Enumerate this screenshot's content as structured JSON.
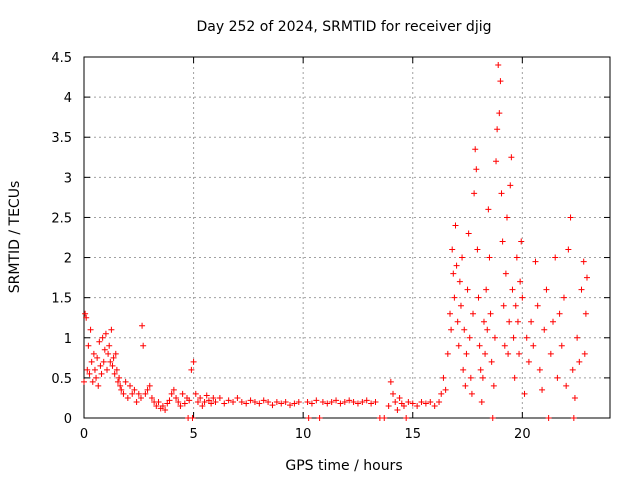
{
  "chart_data": {
    "type": "scatter",
    "title": "Day 252 of 2024, SRMTID for receiver djig",
    "xlabel": "GPS time / hours",
    "ylabel": "SRMTID / TECUs",
    "xlim": [
      0,
      24
    ],
    "ylim": [
      0,
      4.5
    ],
    "xticks": [
      0,
      5,
      10,
      15,
      20
    ],
    "xtick_labels": [
      "0",
      "5",
      "10",
      "15",
      "20"
    ],
    "yticks": [
      0,
      0.5,
      1,
      1.5,
      2,
      2.5,
      3,
      3.5,
      4,
      4.5
    ],
    "ytick_labels": [
      "0",
      "0.5",
      "1",
      "1.5",
      "2",
      "2.5",
      "3",
      "3.5",
      "4",
      "4.5"
    ],
    "grid": true,
    "marker": "+",
    "color": "#ff0000",
    "series": [
      {
        "name": "SRMTID",
        "points": [
          [
            0.0,
            0.45
          ],
          [
            0.05,
            1.3
          ],
          [
            0.1,
            1.25
          ],
          [
            0.15,
            0.6
          ],
          [
            0.2,
            0.9
          ],
          [
            0.25,
            0.55
          ],
          [
            0.3,
            1.1
          ],
          [
            0.35,
            0.7
          ],
          [
            0.4,
            0.45
          ],
          [
            0.45,
            0.8
          ],
          [
            0.5,
            0.6
          ],
          [
            0.55,
            0.5
          ],
          [
            0.6,
            0.75
          ],
          [
            0.65,
            0.4
          ],
          [
            0.7,
            0.95
          ],
          [
            0.75,
            0.65
          ],
          [
            0.8,
            0.55
          ],
          [
            0.85,
            1.0
          ],
          [
            0.9,
            0.7
          ],
          [
            0.95,
            0.85
          ],
          [
            1.0,
            1.05
          ],
          [
            1.05,
            0.6
          ],
          [
            1.1,
            0.8
          ],
          [
            1.15,
            0.9
          ],
          [
            1.2,
            0.7
          ],
          [
            1.25,
            1.1
          ],
          [
            1.3,
            0.65
          ],
          [
            1.35,
            0.75
          ],
          [
            1.4,
            0.55
          ],
          [
            1.45,
            0.8
          ],
          [
            1.5,
            0.6
          ],
          [
            1.55,
            0.45
          ],
          [
            1.6,
            0.5
          ],
          [
            1.65,
            0.4
          ],
          [
            1.7,
            0.35
          ],
          [
            1.8,
            0.3
          ],
          [
            1.9,
            0.45
          ],
          [
            2.0,
            0.25
          ],
          [
            2.1,
            0.4
          ],
          [
            2.2,
            0.3
          ],
          [
            2.3,
            0.35
          ],
          [
            2.4,
            0.2
          ],
          [
            2.5,
            0.3
          ],
          [
            2.6,
            0.25
          ],
          [
            2.65,
            1.15
          ],
          [
            2.7,
            0.9
          ],
          [
            2.8,
            0.3
          ],
          [
            2.9,
            0.35
          ],
          [
            3.0,
            0.4
          ],
          [
            3.1,
            0.25
          ],
          [
            3.2,
            0.2
          ],
          [
            3.3,
            0.15
          ],
          [
            3.4,
            0.2
          ],
          [
            3.5,
            0.12
          ],
          [
            3.6,
            0.15
          ],
          [
            3.7,
            0.1
          ],
          [
            3.8,
            0.18
          ],
          [
            3.9,
            0.22
          ],
          [
            4.0,
            0.3
          ],
          [
            4.1,
            0.35
          ],
          [
            4.2,
            0.25
          ],
          [
            4.3,
            0.2
          ],
          [
            4.4,
            0.15
          ],
          [
            4.5,
            0.3
          ],
          [
            4.6,
            0.18
          ],
          [
            4.7,
            0.25
          ],
          [
            4.75,
            0.0
          ],
          [
            4.8,
            0.22
          ],
          [
            4.9,
            0.6
          ],
          [
            4.95,
            0.0
          ],
          [
            5.0,
            0.7
          ],
          [
            5.1,
            0.3
          ],
          [
            5.2,
            0.2
          ],
          [
            5.3,
            0.25
          ],
          [
            5.4,
            0.15
          ],
          [
            5.5,
            0.2
          ],
          [
            5.6,
            0.28
          ],
          [
            5.7,
            0.22
          ],
          [
            5.8,
            0.18
          ],
          [
            5.9,
            0.25
          ],
          [
            6.0,
            0.2
          ],
          [
            6.2,
            0.25
          ],
          [
            6.4,
            0.18
          ],
          [
            6.6,
            0.22
          ],
          [
            6.8,
            0.2
          ],
          [
            7.0,
            0.25
          ],
          [
            7.2,
            0.2
          ],
          [
            7.4,
            0.18
          ],
          [
            7.6,
            0.22
          ],
          [
            7.8,
            0.2
          ],
          [
            8.0,
            0.18
          ],
          [
            8.2,
            0.22
          ],
          [
            8.4,
            0.2
          ],
          [
            8.6,
            0.16
          ],
          [
            8.8,
            0.2
          ],
          [
            9.0,
            0.18
          ],
          [
            9.2,
            0.2
          ],
          [
            9.4,
            0.16
          ],
          [
            9.6,
            0.18
          ],
          [
            9.8,
            0.2
          ],
          [
            10.2,
            0.2
          ],
          [
            10.25,
            0.0
          ],
          [
            10.4,
            0.18
          ],
          [
            10.6,
            0.22
          ],
          [
            10.75,
            0.0
          ],
          [
            10.9,
            0.2
          ],
          [
            11.1,
            0.18
          ],
          [
            11.3,
            0.2
          ],
          [
            11.5,
            0.22
          ],
          [
            11.7,
            0.18
          ],
          [
            11.9,
            0.2
          ],
          [
            12.1,
            0.22
          ],
          [
            12.3,
            0.2
          ],
          [
            12.5,
            0.18
          ],
          [
            12.7,
            0.2
          ],
          [
            12.9,
            0.22
          ],
          [
            13.1,
            0.18
          ],
          [
            13.3,
            0.2
          ],
          [
            13.5,
            0.0
          ],
          [
            13.7,
            0.0
          ],
          [
            13.9,
            0.15
          ],
          [
            14.0,
            0.45
          ],
          [
            14.1,
            0.3
          ],
          [
            14.2,
            0.2
          ],
          [
            14.3,
            0.1
          ],
          [
            14.4,
            0.25
          ],
          [
            14.5,
            0.18
          ],
          [
            14.6,
            0.15
          ],
          [
            14.7,
            0.0
          ],
          [
            14.8,
            0.2
          ],
          [
            15.0,
            0.18
          ],
          [
            15.2,
            0.15
          ],
          [
            15.4,
            0.2
          ],
          [
            15.6,
            0.18
          ],
          [
            15.8,
            0.2
          ],
          [
            16.0,
            0.15
          ],
          [
            16.2,
            0.2
          ],
          [
            16.3,
            0.3
          ],
          [
            16.4,
            0.5
          ],
          [
            16.5,
            0.35
          ],
          [
            16.6,
            0.8
          ],
          [
            16.7,
            1.3
          ],
          [
            16.75,
            1.1
          ],
          [
            16.8,
            2.1
          ],
          [
            16.85,
            1.8
          ],
          [
            16.9,
            1.5
          ],
          [
            16.95,
            2.4
          ],
          [
            17.0,
            1.9
          ],
          [
            17.05,
            1.2
          ],
          [
            17.1,
            0.9
          ],
          [
            17.15,
            1.7
          ],
          [
            17.2,
            1.4
          ],
          [
            17.25,
            2.0
          ],
          [
            17.3,
            0.6
          ],
          [
            17.35,
            1.1
          ],
          [
            17.4,
            0.4
          ],
          [
            17.45,
            0.8
          ],
          [
            17.5,
            1.6
          ],
          [
            17.55,
            2.3
          ],
          [
            17.6,
            1.0
          ],
          [
            17.65,
            0.5
          ],
          [
            17.7,
            0.3
          ],
          [
            17.75,
            1.3
          ],
          [
            17.8,
            2.8
          ],
          [
            17.85,
            3.35
          ],
          [
            17.9,
            3.1
          ],
          [
            17.95,
            2.1
          ],
          [
            18.0,
            1.5
          ],
          [
            18.05,
            0.9
          ],
          [
            18.1,
            0.6
          ],
          [
            18.15,
            0.2
          ],
          [
            18.2,
            0.5
          ],
          [
            18.25,
            1.2
          ],
          [
            18.3,
            0.8
          ],
          [
            18.35,
            1.6
          ],
          [
            18.4,
            1.1
          ],
          [
            18.45,
            2.6
          ],
          [
            18.5,
            2.0
          ],
          [
            18.55,
            1.3
          ],
          [
            18.6,
            0.7
          ],
          [
            18.65,
            0.0
          ],
          [
            18.7,
            0.4
          ],
          [
            18.75,
            1.0
          ],
          [
            18.8,
            3.2
          ],
          [
            18.85,
            3.6
          ],
          [
            18.9,
            4.4
          ],
          [
            18.95,
            3.8
          ],
          [
            19.0,
            4.2
          ],
          [
            19.05,
            2.8
          ],
          [
            19.1,
            2.2
          ],
          [
            19.15,
            1.4
          ],
          [
            19.2,
            0.9
          ],
          [
            19.25,
            1.8
          ],
          [
            19.3,
            2.5
          ],
          [
            19.35,
            0.8
          ],
          [
            19.4,
            1.2
          ],
          [
            19.45,
            2.9
          ],
          [
            19.5,
            3.25
          ],
          [
            19.55,
            1.6
          ],
          [
            19.6,
            1.0
          ],
          [
            19.65,
            0.5
          ],
          [
            19.7,
            1.4
          ],
          [
            19.75,
            2.0
          ],
          [
            19.8,
            1.2
          ],
          [
            19.85,
            0.8
          ],
          [
            19.9,
            1.7
          ],
          [
            19.95,
            2.2
          ],
          [
            20.0,
            1.5
          ],
          [
            20.1,
            0.3
          ],
          [
            20.2,
            1.0
          ],
          [
            20.3,
            0.7
          ],
          [
            20.4,
            1.2
          ],
          [
            20.5,
            0.9
          ],
          [
            20.6,
            1.95
          ],
          [
            20.7,
            1.4
          ],
          [
            20.8,
            0.6
          ],
          [
            20.9,
            0.35
          ],
          [
            21.0,
            1.1
          ],
          [
            21.1,
            1.6
          ],
          [
            21.2,
            0.0
          ],
          [
            21.3,
            0.8
          ],
          [
            21.4,
            1.2
          ],
          [
            21.5,
            2.0
          ],
          [
            21.6,
            0.5
          ],
          [
            21.7,
            1.3
          ],
          [
            21.8,
            0.9
          ],
          [
            21.9,
            1.5
          ],
          [
            22.0,
            0.4
          ],
          [
            22.1,
            2.1
          ],
          [
            22.2,
            2.5
          ],
          [
            22.3,
            0.6
          ],
          [
            22.35,
            0.0
          ],
          [
            22.4,
            0.25
          ],
          [
            22.5,
            1.0
          ],
          [
            22.6,
            0.7
          ],
          [
            22.7,
            1.6
          ],
          [
            22.8,
            1.95
          ],
          [
            22.85,
            0.8
          ],
          [
            22.9,
            1.3
          ],
          [
            22.95,
            1.75
          ]
        ]
      }
    ]
  }
}
